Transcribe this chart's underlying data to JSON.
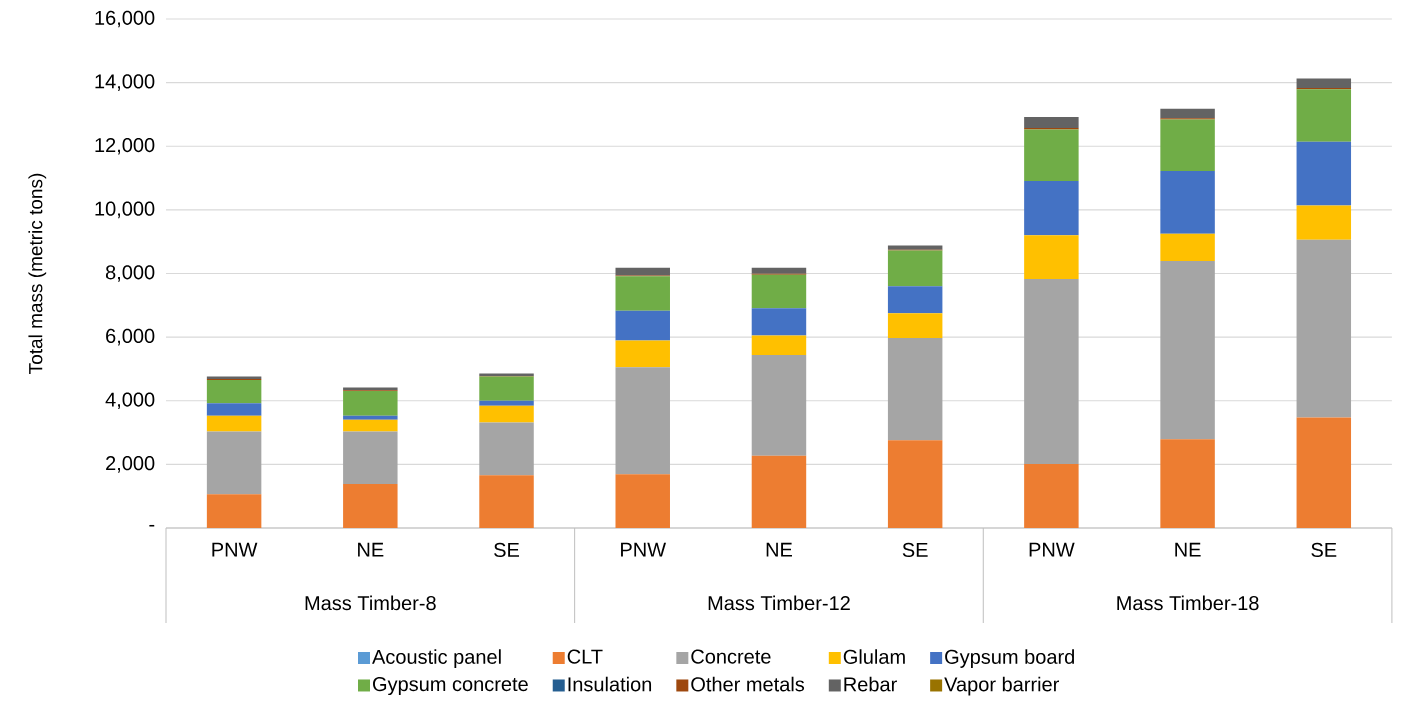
{
  "chart_data": {
    "type": "bar",
    "stacked": true,
    "ylabel": "Total mass (metric tons)",
    "categories": [
      "PNW",
      "NE",
      "SE",
      "PNW",
      "NE",
      "SE",
      "PNW",
      "NE",
      "SE"
    ],
    "annotations": [
      "Mass Timber-8",
      "Mass Timber-12",
      "Mass Timber-18"
    ],
    "ylim": [
      0,
      16000
    ],
    "yticks": [
      {
        "value": 0,
        "label": "-"
      },
      {
        "value": 2000,
        "label": "2,000"
      },
      {
        "value": 4000,
        "label": "4,000"
      },
      {
        "value": 6000,
        "label": "6,000"
      },
      {
        "value": 8000,
        "label": "8,000"
      },
      {
        "value": 10000,
        "label": "10,000"
      },
      {
        "value": 12000,
        "label": "12,000"
      },
      {
        "value": 14000,
        "label": "14,000"
      },
      {
        "value": 16000,
        "label": "16,000"
      }
    ],
    "grid": "y",
    "legend": "bottom",
    "series": [
      {
        "name": "Acoustic panel",
        "color": "#5b9bd5",
        "values": [
          null,
          null,
          null,
          null,
          null,
          null,
          null,
          null,
          null
        ]
      },
      {
        "name": "CLT",
        "color": "#ed7d31",
        "values": [
          1060,
          1380,
          1660,
          1690,
          2270,
          2760,
          2010,
          2790,
          3470
        ]
      },
      {
        "name": "Concrete",
        "color": "#a5a5a5",
        "values": [
          1970,
          1650,
          1660,
          3360,
          3170,
          3210,
          5820,
          5600,
          5590
        ]
      },
      {
        "name": "Glulam",
        "color": "#ffc000",
        "values": [
          500,
          370,
          520,
          840,
          610,
          780,
          1370,
          860,
          1080
        ]
      },
      {
        "name": "Gypsum board",
        "color": "#4472c4",
        "values": [
          390,
          130,
          160,
          940,
          860,
          850,
          1710,
          1970,
          2000
        ]
      },
      {
        "name": "Gypsum concrete",
        "color": "#70ad47",
        "values": [
          730,
          780,
          760,
          1080,
          1050,
          1120,
          1620,
          1620,
          1650
        ]
      },
      {
        "name": "Insulation",
        "color": "#255e91",
        "values": [
          null,
          null,
          null,
          null,
          null,
          null,
          null,
          null,
          null
        ]
      },
      {
        "name": "Other metals",
        "color": "#9e480e",
        "values": [
          30,
          20,
          20,
          30,
          30,
          30,
          40,
          40,
          40
        ]
      },
      {
        "name": "Rebar",
        "color": "#636363",
        "values": [
          80,
          90,
          80,
          240,
          190,
          130,
          350,
          300,
          300
        ]
      },
      {
        "name": "Vapor barrier",
        "color": "#997300",
        "values": [
          null,
          null,
          null,
          null,
          null,
          null,
          null,
          null,
          null
        ]
      }
    ]
  }
}
